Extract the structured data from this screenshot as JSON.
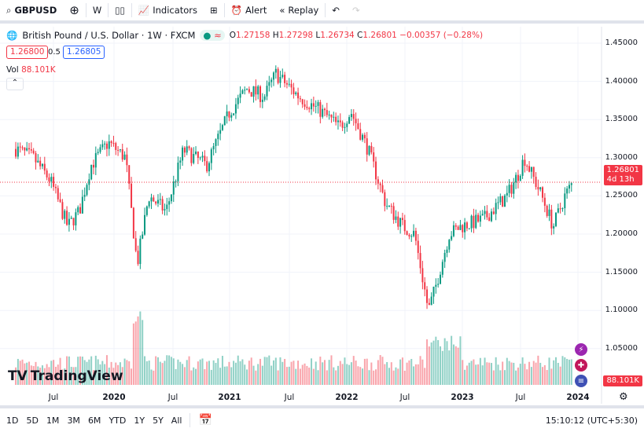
{
  "toolbar": {
    "symbol": "GBPUSD",
    "interval": "W",
    "indicators": "Indicators",
    "alert": "Alert",
    "replay": "Replay"
  },
  "legend": {
    "title": "British Pound / U.S. Dollar · 1W · FXCM",
    "o_label": "O",
    "o": "1.27158",
    "h_label": "H",
    "h": "1.27298",
    "l_label": "L",
    "l": "1.26734",
    "c_label": "C",
    "c": "1.26801",
    "change": "−0.00357 (−0.28%)",
    "sell": "1.26800",
    "spread": "0.5",
    "buy": "1.26805",
    "vol_label": "Vol",
    "vol": "88.101K"
  },
  "price_axis": [
    "1.45000",
    "1.40000",
    "1.35000",
    "1.30000",
    "1.25000",
    "1.20000",
    "1.15000",
    "1.10000",
    "1.05000"
  ],
  "current_price": "1.26801",
  "countdown": "4d 13h",
  "volume_label": "88.101K",
  "time_axis": [
    "Jul",
    "2020",
    "Jul",
    "2021",
    "Jul",
    "2022",
    "Jul",
    "2023",
    "Jul",
    "2024"
  ],
  "brand": "TradingView",
  "ranges": [
    "1D",
    "5D",
    "1M",
    "3M",
    "6M",
    "YTD",
    "1Y",
    "5Y",
    "All"
  ],
  "clock": "15:10:12 (UTC+5:30)",
  "colors": {
    "up": "#089981",
    "down": "#f23645"
  },
  "chart_data": {
    "type": "candlestick",
    "symbol": "GBPUSD",
    "timeframe": "1W",
    "anchors": [
      [
        2019.17,
        1.31
      ],
      [
        2019.3,
        1.3
      ],
      [
        2019.45,
        1.27
      ],
      [
        2019.6,
        1.21
      ],
      [
        2019.7,
        1.23
      ],
      [
        2019.8,
        1.29
      ],
      [
        2019.95,
        1.32
      ],
      [
        2020.1,
        1.3
      ],
      [
        2020.2,
        1.16
      ],
      [
        2020.3,
        1.25
      ],
      [
        2020.45,
        1.23
      ],
      [
        2020.6,
        1.31
      ],
      [
        2020.8,
        1.29
      ],
      [
        2021.0,
        1.36
      ],
      [
        2021.15,
        1.39
      ],
      [
        2021.3,
        1.38
      ],
      [
        2021.4,
        1.41
      ],
      [
        2021.6,
        1.38
      ],
      [
        2021.8,
        1.36
      ],
      [
        2021.95,
        1.34
      ],
      [
        2022.05,
        1.36
      ],
      [
        2022.2,
        1.31
      ],
      [
        2022.35,
        1.24
      ],
      [
        2022.5,
        1.21
      ],
      [
        2022.6,
        1.2
      ],
      [
        2022.72,
        1.1
      ],
      [
        2022.78,
        1.13
      ],
      [
        2022.9,
        1.2
      ],
      [
        2023.0,
        1.21
      ],
      [
        2023.2,
        1.22
      ],
      [
        2023.4,
        1.25
      ],
      [
        2023.5,
        1.28
      ],
      [
        2023.55,
        1.3
      ],
      [
        2023.7,
        1.25
      ],
      [
        2023.8,
        1.21
      ],
      [
        2023.9,
        1.25
      ],
      [
        2023.97,
        1.268
      ]
    ],
    "ylim": [
      1.05,
      1.45
    ]
  }
}
